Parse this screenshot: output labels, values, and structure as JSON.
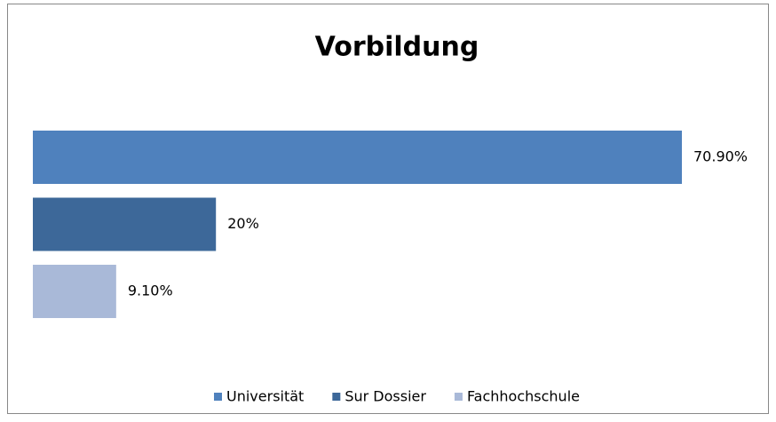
{
  "chart_data": {
    "type": "bar",
    "orientation": "horizontal",
    "title": "Vorbildung",
    "series": [
      {
        "name": "Universität",
        "color": "#4f81bd",
        "values": [
          70.9
        ],
        "value_labels": [
          "70.90%"
        ]
      },
      {
        "name": "Sur Dossier",
        "color": "#3d6899",
        "values": [
          20
        ],
        "value_labels": [
          "20%"
        ]
      },
      {
        "name": "Fachhochschule",
        "color": "#a9b9d8",
        "values": [
          9.1
        ],
        "value_labels": [
          "9.10%"
        ]
      }
    ],
    "legend": "bottom"
  }
}
